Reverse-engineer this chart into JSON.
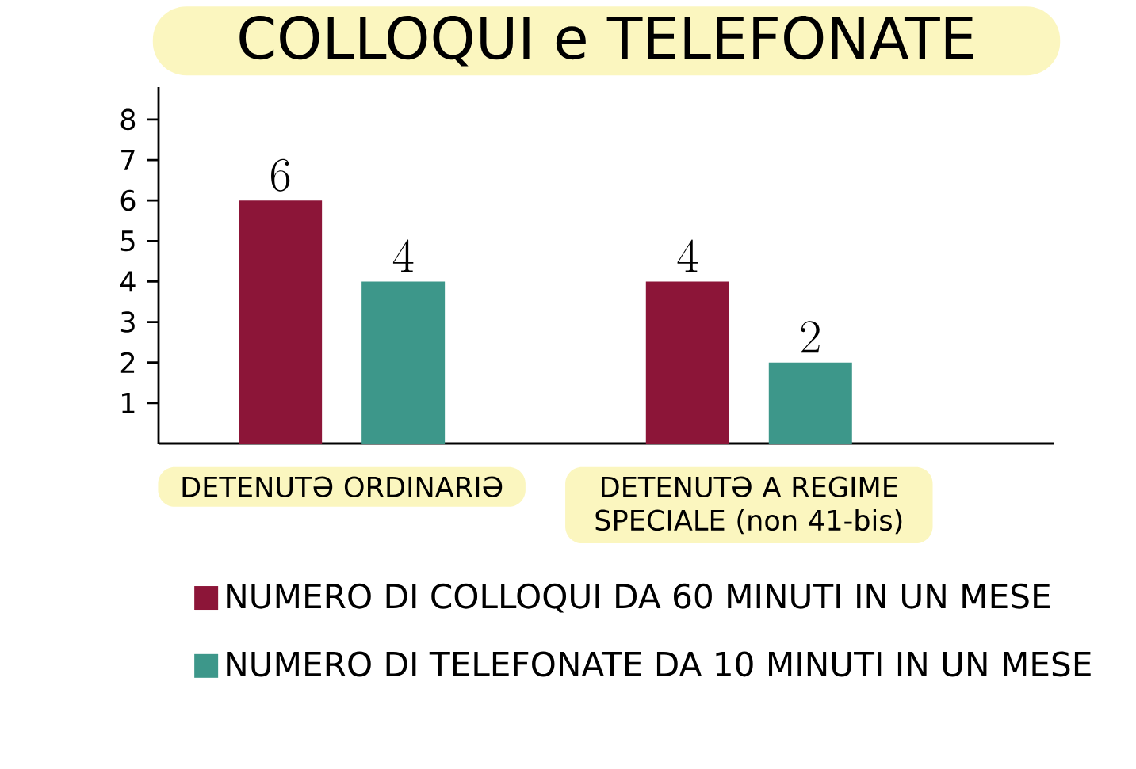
{
  "chart_data": {
    "type": "bar",
    "title": "COLLOQUI e TELEFONATE",
    "categories": [
      "DETENUTƏ ORDINARIƏ",
      "DETENUTƏ A REGIME SPECIALE (non 41-bis)"
    ],
    "series": [
      {
        "name": "NUMERO DI COLLOQUI DA 60 MINUTI IN UN MESE",
        "color": "#8c1538",
        "values": [
          6,
          4
        ]
      },
      {
        "name": "NUMERO DI TELEFONATE DA 10 MINUTI IN UN MESE",
        "color": "#3d978a",
        "values": [
          4,
          2
        ]
      }
    ],
    "ylim": [
      0,
      8.8
    ],
    "yticks": [
      1,
      2,
      3,
      4,
      5,
      6,
      7,
      8
    ],
    "data_labels": true,
    "legend": "bottom",
    "grid": false
  }
}
